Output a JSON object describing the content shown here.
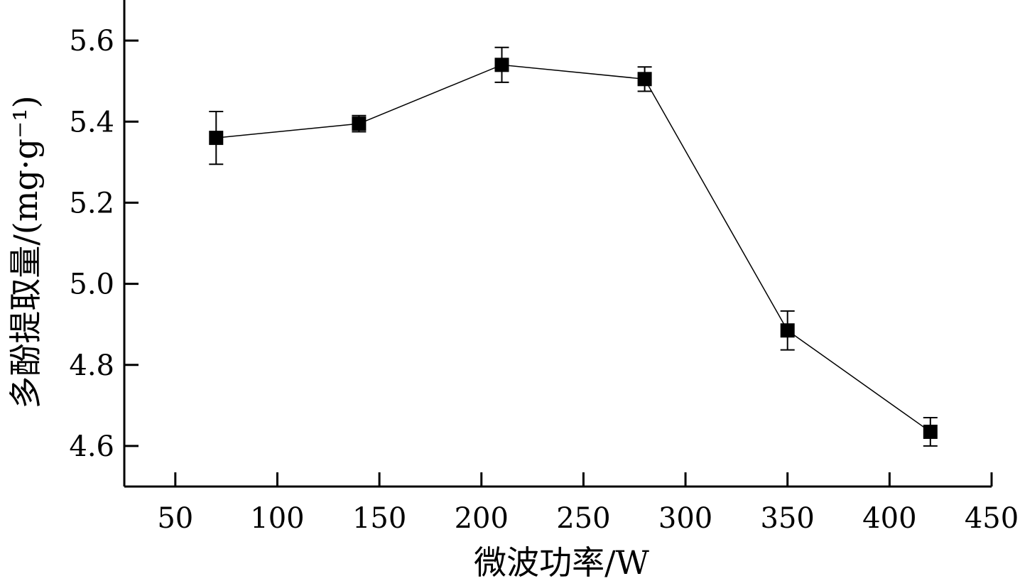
{
  "chart_data": {
    "type": "line",
    "title": "",
    "xlabel": "微波功率/W",
    "ylabel": "多酚提取量/(mg·g⁻¹)",
    "xlim": [
      25,
      450
    ],
    "ylim": [
      4.5,
      5.7
    ],
    "xticks": [
      50,
      100,
      150,
      200,
      250,
      300,
      350,
      400,
      450
    ],
    "yticks": [
      4.6,
      4.8,
      5.0,
      5.2,
      5.4,
      5.6
    ],
    "grid": false,
    "marker": "square",
    "series": [
      {
        "name": "",
        "points": [
          {
            "x": 70,
            "y": 5.36,
            "err": 0.065
          },
          {
            "x": 140,
            "y": 5.395,
            "err": 0.02
          },
          {
            "x": 210,
            "y": 5.54,
            "err": 0.043
          },
          {
            "x": 280,
            "y": 5.505,
            "err": 0.03
          },
          {
            "x": 350,
            "y": 4.885,
            "err": 0.048
          },
          {
            "x": 420,
            "y": 4.635,
            "err": 0.035
          }
        ]
      }
    ]
  }
}
